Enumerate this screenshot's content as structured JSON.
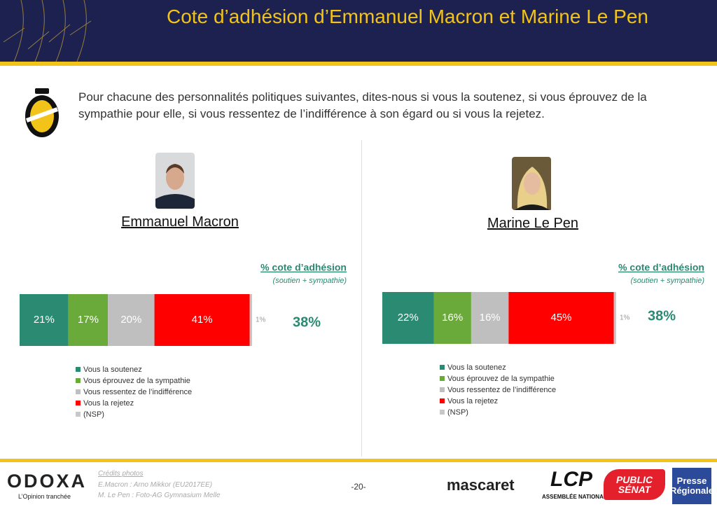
{
  "title": "Cote d’adhésion d’Emmanuel Macron et Marine Le Pen",
  "question": "Pour chacune des personnalités politiques suivantes, dites-nous si vous la soutenez, si vous éprouvez de la sympathie pour elle, si vous ressentez de l’indifférence à son égard ou si vous la rejetez.",
  "chart_data": [
    {
      "type": "bar",
      "stacked": true,
      "orientation": "horizontal",
      "title": "Emmanuel Macron",
      "categories": [
        null
      ],
      "xlim": [
        0,
        100
      ],
      "series": [
        {
          "name": "Vous la soutenez",
          "color": "#2b8a72",
          "values": [
            21
          ],
          "value_labels": [
            "21%"
          ]
        },
        {
          "name": "Vous éprouvez de la sympathie",
          "color": "#6aaa3a",
          "values": [
            17
          ],
          "value_labels": [
            "17%"
          ]
        },
        {
          "name": "Vous ressentez de l’indifférence",
          "color": "#bfbfbf",
          "values": [
            20
          ],
          "value_labels": [
            "20%"
          ]
        },
        {
          "name": "Vous la rejetez",
          "color": "#ff0000",
          "values": [
            41
          ],
          "value_labels": [
            "41%"
          ]
        },
        {
          "name": "(NSP)",
          "color": "#c8c8c8",
          "values": [
            1
          ],
          "value_labels": [
            "1%"
          ]
        }
      ],
      "summary": {
        "label": "% cote d’adhésion",
        "sublabel": "(soutien + sympathie)",
        "value": 38,
        "value_label": "38%"
      }
    },
    {
      "type": "bar",
      "stacked": true,
      "orientation": "horizontal",
      "title": "Marine Le Pen",
      "categories": [
        null
      ],
      "xlim": [
        0,
        100
      ],
      "series": [
        {
          "name": "Vous la soutenez",
          "color": "#2b8a72",
          "values": [
            22
          ],
          "value_labels": [
            "22%"
          ]
        },
        {
          "name": "Vous éprouvez de la sympathie",
          "color": "#6aaa3a",
          "values": [
            16
          ],
          "value_labels": [
            "16%"
          ]
        },
        {
          "name": "Vous ressentez de l’indifférence",
          "color": "#bfbfbf",
          "values": [
            16
          ],
          "value_labels": [
            "16%"
          ]
        },
        {
          "name": "Vous la rejetez",
          "color": "#ff0000",
          "values": [
            45
          ],
          "value_labels": [
            "45%"
          ]
        },
        {
          "name": "(NSP)",
          "color": "#c8c8c8",
          "values": [
            1
          ],
          "value_labels": [
            "1%"
          ]
        }
      ],
      "summary": {
        "label": "% cote d’adhésion",
        "sublabel": "(soutien + sympathie)",
        "value": 38,
        "value_label": "38%"
      }
    }
  ],
  "footer": {
    "brand": "ODOXA",
    "tagline": "L’Opinion tranchée",
    "credits_title": "Crédits photos",
    "credits": [
      "E.Macron : Arno Mikkor (EU2017EE)",
      "M. Le Pen : Foto-AG Gymnasium Melle"
    ],
    "page": "-20-",
    "partners": [
      "mascaret",
      "LCP",
      "ASSEMBLÉE NATIONALE",
      "PUBLIC SÉNAT",
      "Presse Régionale"
    ]
  }
}
